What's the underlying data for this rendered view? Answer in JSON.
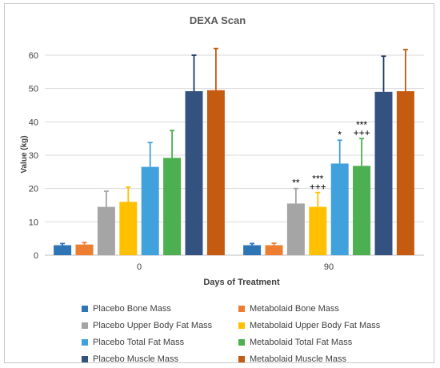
{
  "chart_data": {
    "type": "bar",
    "title": "DEXA Scan",
    "xlabel": "Days of Treatment",
    "ylabel": "Value (kg)",
    "ylim": [
      0,
      60
    ],
    "yticks": [
      0,
      10,
      20,
      30,
      40,
      50,
      60
    ],
    "gridlines": true,
    "legend_position": "bottom",
    "categories": [
      "0",
      "90"
    ],
    "series": [
      {
        "name": "Placebo Bone Mass",
        "color": "#2e75b6",
        "values": [
          3.0,
          3.0
        ],
        "error": [
          0.5,
          0.5
        ],
        "error_color": "#2e75b6"
      },
      {
        "name": "Metabolaid Bone Mass",
        "color": "#ed7d31",
        "values": [
          3.2,
          3.0
        ],
        "error": [
          0.6,
          0.6
        ],
        "error_color": "#ed7d31"
      },
      {
        "name": "Placebo Upper Body Fat Mass",
        "color": "#a5a5a5",
        "values": [
          14.5,
          15.5
        ],
        "error": [
          4.7,
          4.5
        ],
        "error_color": "#a5a5a5"
      },
      {
        "name": "Metabolaid Upper Body Fat Mass",
        "color": "#ffc000",
        "values": [
          16.0,
          14.5
        ],
        "error": [
          4.4,
          4.3
        ],
        "error_color": "#ffc000"
      },
      {
        "name": "Placebo Total Fat Mass",
        "color": "#41a1dc",
        "values": [
          26.5,
          27.5
        ],
        "error": [
          7.3,
          7.0
        ],
        "error_color": "#41a1dc"
      },
      {
        "name": "Metabolaid Total Fat Mass",
        "color": "#4caf50",
        "values": [
          29.2,
          26.8
        ],
        "error": [
          8.2,
          8.2
        ],
        "error_color": "#4caf50"
      },
      {
        "name": "Placebo Muscle Mass",
        "color": "#34527f",
        "values": [
          49.2,
          49.0
        ],
        "error": [
          10.8,
          10.7
        ],
        "error_color": "#1f3864"
      },
      {
        "name": "Metabolaid Muscle Mass",
        "color": "#c55a11",
        "values": [
          49.5,
          49.2
        ],
        "error": [
          12.5,
          12.5
        ],
        "error_color": "#c55a11"
      }
    ],
    "annotations": [
      {
        "category": "90",
        "series": "Placebo Upper Body Fat Mass",
        "lines": [
          "**"
        ]
      },
      {
        "category": "90",
        "series": "Metabolaid Upper Body Fat Mass",
        "lines": [
          "***",
          "+++"
        ]
      },
      {
        "category": "90",
        "series": "Placebo Total Fat Mass",
        "lines": [
          "*"
        ]
      },
      {
        "category": "90",
        "series": "Metabolaid Total Fat Mass",
        "lines": [
          "***",
          "+++"
        ]
      }
    ]
  }
}
